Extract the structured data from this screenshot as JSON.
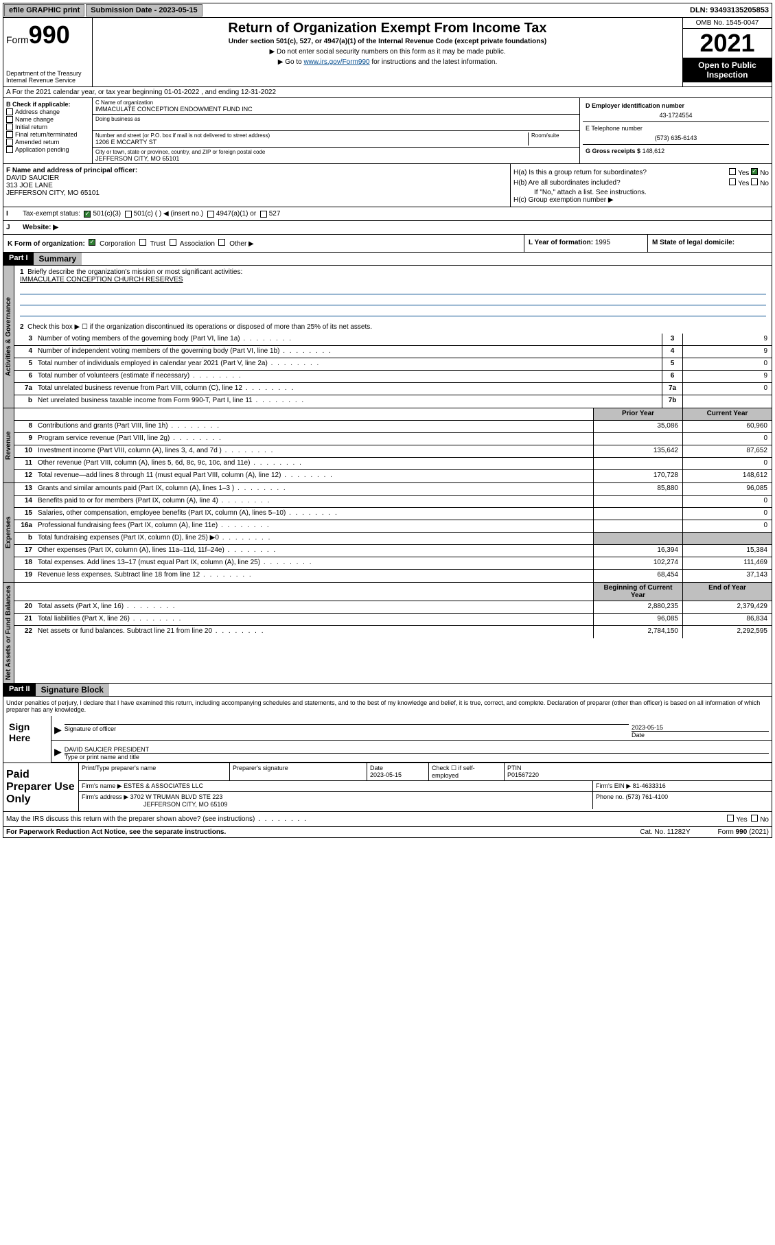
{
  "topbar": {
    "efile": "efile GRAPHIC print",
    "submission_label": "Submission Date - 2023-05-15",
    "dln": "DLN: 93493135205853"
  },
  "header": {
    "form_label": "Form",
    "form_num": "990",
    "dept": "Department of the Treasury",
    "irs": "Internal Revenue Service",
    "title": "Return of Organization Exempt From Income Tax",
    "subtitle": "Under section 501(c), 527, or 4947(a)(1) of the Internal Revenue Code (except private foundations)",
    "note1": "▶ Do not enter social security numbers on this form as it may be made public.",
    "note2_pre": "▶ Go to ",
    "note2_link": "www.irs.gov/Form990",
    "note2_post": " for instructions and the latest information.",
    "omb": "OMB No. 1545-0047",
    "year": "2021",
    "open": "Open to Public Inspection"
  },
  "sectionA": "A For the 2021 calendar year, or tax year beginning 01-01-2022   , and ending 12-31-2022",
  "blockB": {
    "label": "B Check if applicable:",
    "items": [
      "Address change",
      "Name change",
      "Initial return",
      "Final return/terminated",
      "Amended return",
      "Application pending"
    ]
  },
  "blockC": {
    "name_label": "C Name of organization",
    "name": "IMMACULATE CONCEPTION ENDOWMENT FUND INC",
    "dba_label": "Doing business as",
    "addr_label": "Number and street (or P.O. box if mail is not delivered to street address)",
    "room_label": "Room/suite",
    "addr": "1206 E MCCARTY ST",
    "city_label": "City or town, state or province, country, and ZIP or foreign postal code",
    "city": "JEFFERSON CITY, MO  65101"
  },
  "blockD": {
    "ein_label": "D Employer identification number",
    "ein": "43-1724554",
    "phone_label": "E Telephone number",
    "phone": "(573) 635-6143",
    "gross_label": "G Gross receipts $",
    "gross": "148,612"
  },
  "blockF": {
    "label": "F  Name and address of principal officer:",
    "name": "DAVID SAUCIER",
    "addr1": "313 JOE LANE",
    "addr2": "JEFFERSON CITY, MO  65101"
  },
  "blockH": {
    "ha": "H(a)  Is this a group return for subordinates?",
    "hb": "H(b)  Are all subordinates included?",
    "hb_note": "If \"No,\" attach a list. See instructions.",
    "hc": "H(c)  Group exemption number ▶"
  },
  "blockI": {
    "label": "Tax-exempt status:",
    "opt1": "501(c)(3)",
    "opt2": "501(c) (  ) ◀ (insert no.)",
    "opt3": "4947(a)(1) or",
    "opt4": "527"
  },
  "blockJ": {
    "label": "Website: ▶"
  },
  "blockK": {
    "label": "K Form of organization:",
    "opts": [
      "Corporation",
      "Trust",
      "Association",
      "Other ▶"
    ]
  },
  "blockL": {
    "label": "L Year of formation:",
    "val": "1995"
  },
  "blockM": {
    "label": "M State of legal domicile:"
  },
  "part1": {
    "hdr": "Part I",
    "title": "Summary"
  },
  "summary": {
    "l1": "Briefly describe the organization's mission or most significant activities:",
    "mission": "IMMACULATE CONCEPTION CHURCH RESERVES",
    "l2": "Check this box ▶ ☐  if the organization discontinued its operations or disposed of more than 25% of its net assets.",
    "rows": [
      {
        "n": "3",
        "d": "Number of voting members of the governing body (Part VI, line 1a)",
        "box": "3",
        "v": "9"
      },
      {
        "n": "4",
        "d": "Number of independent voting members of the governing body (Part VI, line 1b)",
        "box": "4",
        "v": "9"
      },
      {
        "n": "5",
        "d": "Total number of individuals employed in calendar year 2021 (Part V, line 2a)",
        "box": "5",
        "v": "0"
      },
      {
        "n": "6",
        "d": "Total number of volunteers (estimate if necessary)",
        "box": "6",
        "v": "9"
      },
      {
        "n": "7a",
        "d": "Total unrelated business revenue from Part VIII, column (C), line 12",
        "box": "7a",
        "v": "0"
      },
      {
        "n": "b",
        "d": "Net unrelated business taxable income from Form 990-T, Part I, line 11",
        "box": "7b",
        "v": ""
      }
    ],
    "col_prior": "Prior Year",
    "col_current": "Current Year",
    "col_begin": "Beginning of Current Year",
    "col_end": "End of Year",
    "rev": [
      {
        "n": "8",
        "d": "Contributions and grants (Part VIII, line 1h)",
        "p": "35,086",
        "c": "60,960"
      },
      {
        "n": "9",
        "d": "Program service revenue (Part VIII, line 2g)",
        "p": "",
        "c": "0"
      },
      {
        "n": "10",
        "d": "Investment income (Part VIII, column (A), lines 3, 4, and 7d )",
        "p": "135,642",
        "c": "87,652"
      },
      {
        "n": "11",
        "d": "Other revenue (Part VIII, column (A), lines 5, 6d, 8c, 9c, 10c, and 11e)",
        "p": "",
        "c": "0"
      },
      {
        "n": "12",
        "d": "Total revenue—add lines 8 through 11 (must equal Part VIII, column (A), line 12)",
        "p": "170,728",
        "c": "148,612"
      }
    ],
    "exp": [
      {
        "n": "13",
        "d": "Grants and similar amounts paid (Part IX, column (A), lines 1–3 )",
        "p": "85,880",
        "c": "96,085"
      },
      {
        "n": "14",
        "d": "Benefits paid to or for members (Part IX, column (A), line 4)",
        "p": "",
        "c": "0"
      },
      {
        "n": "15",
        "d": "Salaries, other compensation, employee benefits (Part IX, column (A), lines 5–10)",
        "p": "",
        "c": "0"
      },
      {
        "n": "16a",
        "d": "Professional fundraising fees (Part IX, column (A), line 11e)",
        "p": "",
        "c": "0"
      },
      {
        "n": "b",
        "d": "Total fundraising expenses (Part IX, column (D), line 25) ▶0",
        "p": "",
        "c": "",
        "shaded": true
      },
      {
        "n": "17",
        "d": "Other expenses (Part IX, column (A), lines 11a–11d, 11f–24e)",
        "p": "16,394",
        "c": "15,384"
      },
      {
        "n": "18",
        "d": "Total expenses. Add lines 13–17 (must equal Part IX, column (A), line 25)",
        "p": "102,274",
        "c": "111,469"
      },
      {
        "n": "19",
        "d": "Revenue less expenses. Subtract line 18 from line 12",
        "p": "68,454",
        "c": "37,143"
      }
    ],
    "net": [
      {
        "n": "20",
        "d": "Total assets (Part X, line 16)",
        "p": "2,880,235",
        "c": "2,379,429"
      },
      {
        "n": "21",
        "d": "Total liabilities (Part X, line 26)",
        "p": "96,085",
        "c": "86,834"
      },
      {
        "n": "22",
        "d": "Net assets or fund balances. Subtract line 21 from line 20",
        "p": "2,784,150",
        "c": "2,292,595"
      }
    ]
  },
  "vtabs": {
    "gov": "Activities & Governance",
    "rev": "Revenue",
    "exp": "Expenses",
    "net": "Net Assets or Fund Balances"
  },
  "part2": {
    "hdr": "Part II",
    "title": "Signature Block"
  },
  "sig": {
    "decl": "Under penalties of perjury, I declare that I have examined this return, including accompanying schedules and statements, and to the best of my knowledge and belief, it is true, correct, and complete. Declaration of preparer (other than officer) is based on all information of which preparer has any knowledge.",
    "sign_here": "Sign Here",
    "sig_officer": "Signature of officer",
    "date": "Date",
    "date_val": "2023-05-15",
    "officer_name": "DAVID SAUCIER  PRESIDENT",
    "type_name": "Type or print name and title"
  },
  "paid": {
    "label": "Paid Preparer Use Only",
    "prep_name_label": "Print/Type preparer's name",
    "prep_sig_label": "Preparer's signature",
    "date_label": "Date",
    "date_val": "2023-05-15",
    "check_label": "Check ☐ if self-employed",
    "ptin_label": "PTIN",
    "ptin": "P01567220",
    "firm_name_label": "Firm's name    ▶",
    "firm_name": "ESTES & ASSOCIATES LLC",
    "firm_ein_label": "Firm's EIN ▶",
    "firm_ein": "81-4633316",
    "firm_addr_label": "Firm's address ▶",
    "firm_addr1": "3702 W TRUMAN BLVD STE 223",
    "firm_addr2": "JEFFERSON CITY, MO  65109",
    "phone_label": "Phone no.",
    "phone": "(573) 761-4100"
  },
  "may_irs": "May the IRS discuss this return with the preparer shown above? (see instructions)",
  "footer": {
    "left": "For Paperwork Reduction Act Notice, see the separate instructions.",
    "mid": "Cat. No. 11282Y",
    "right": "Form 990 (2021)"
  },
  "yn": {
    "yes": "Yes",
    "no": "No"
  }
}
